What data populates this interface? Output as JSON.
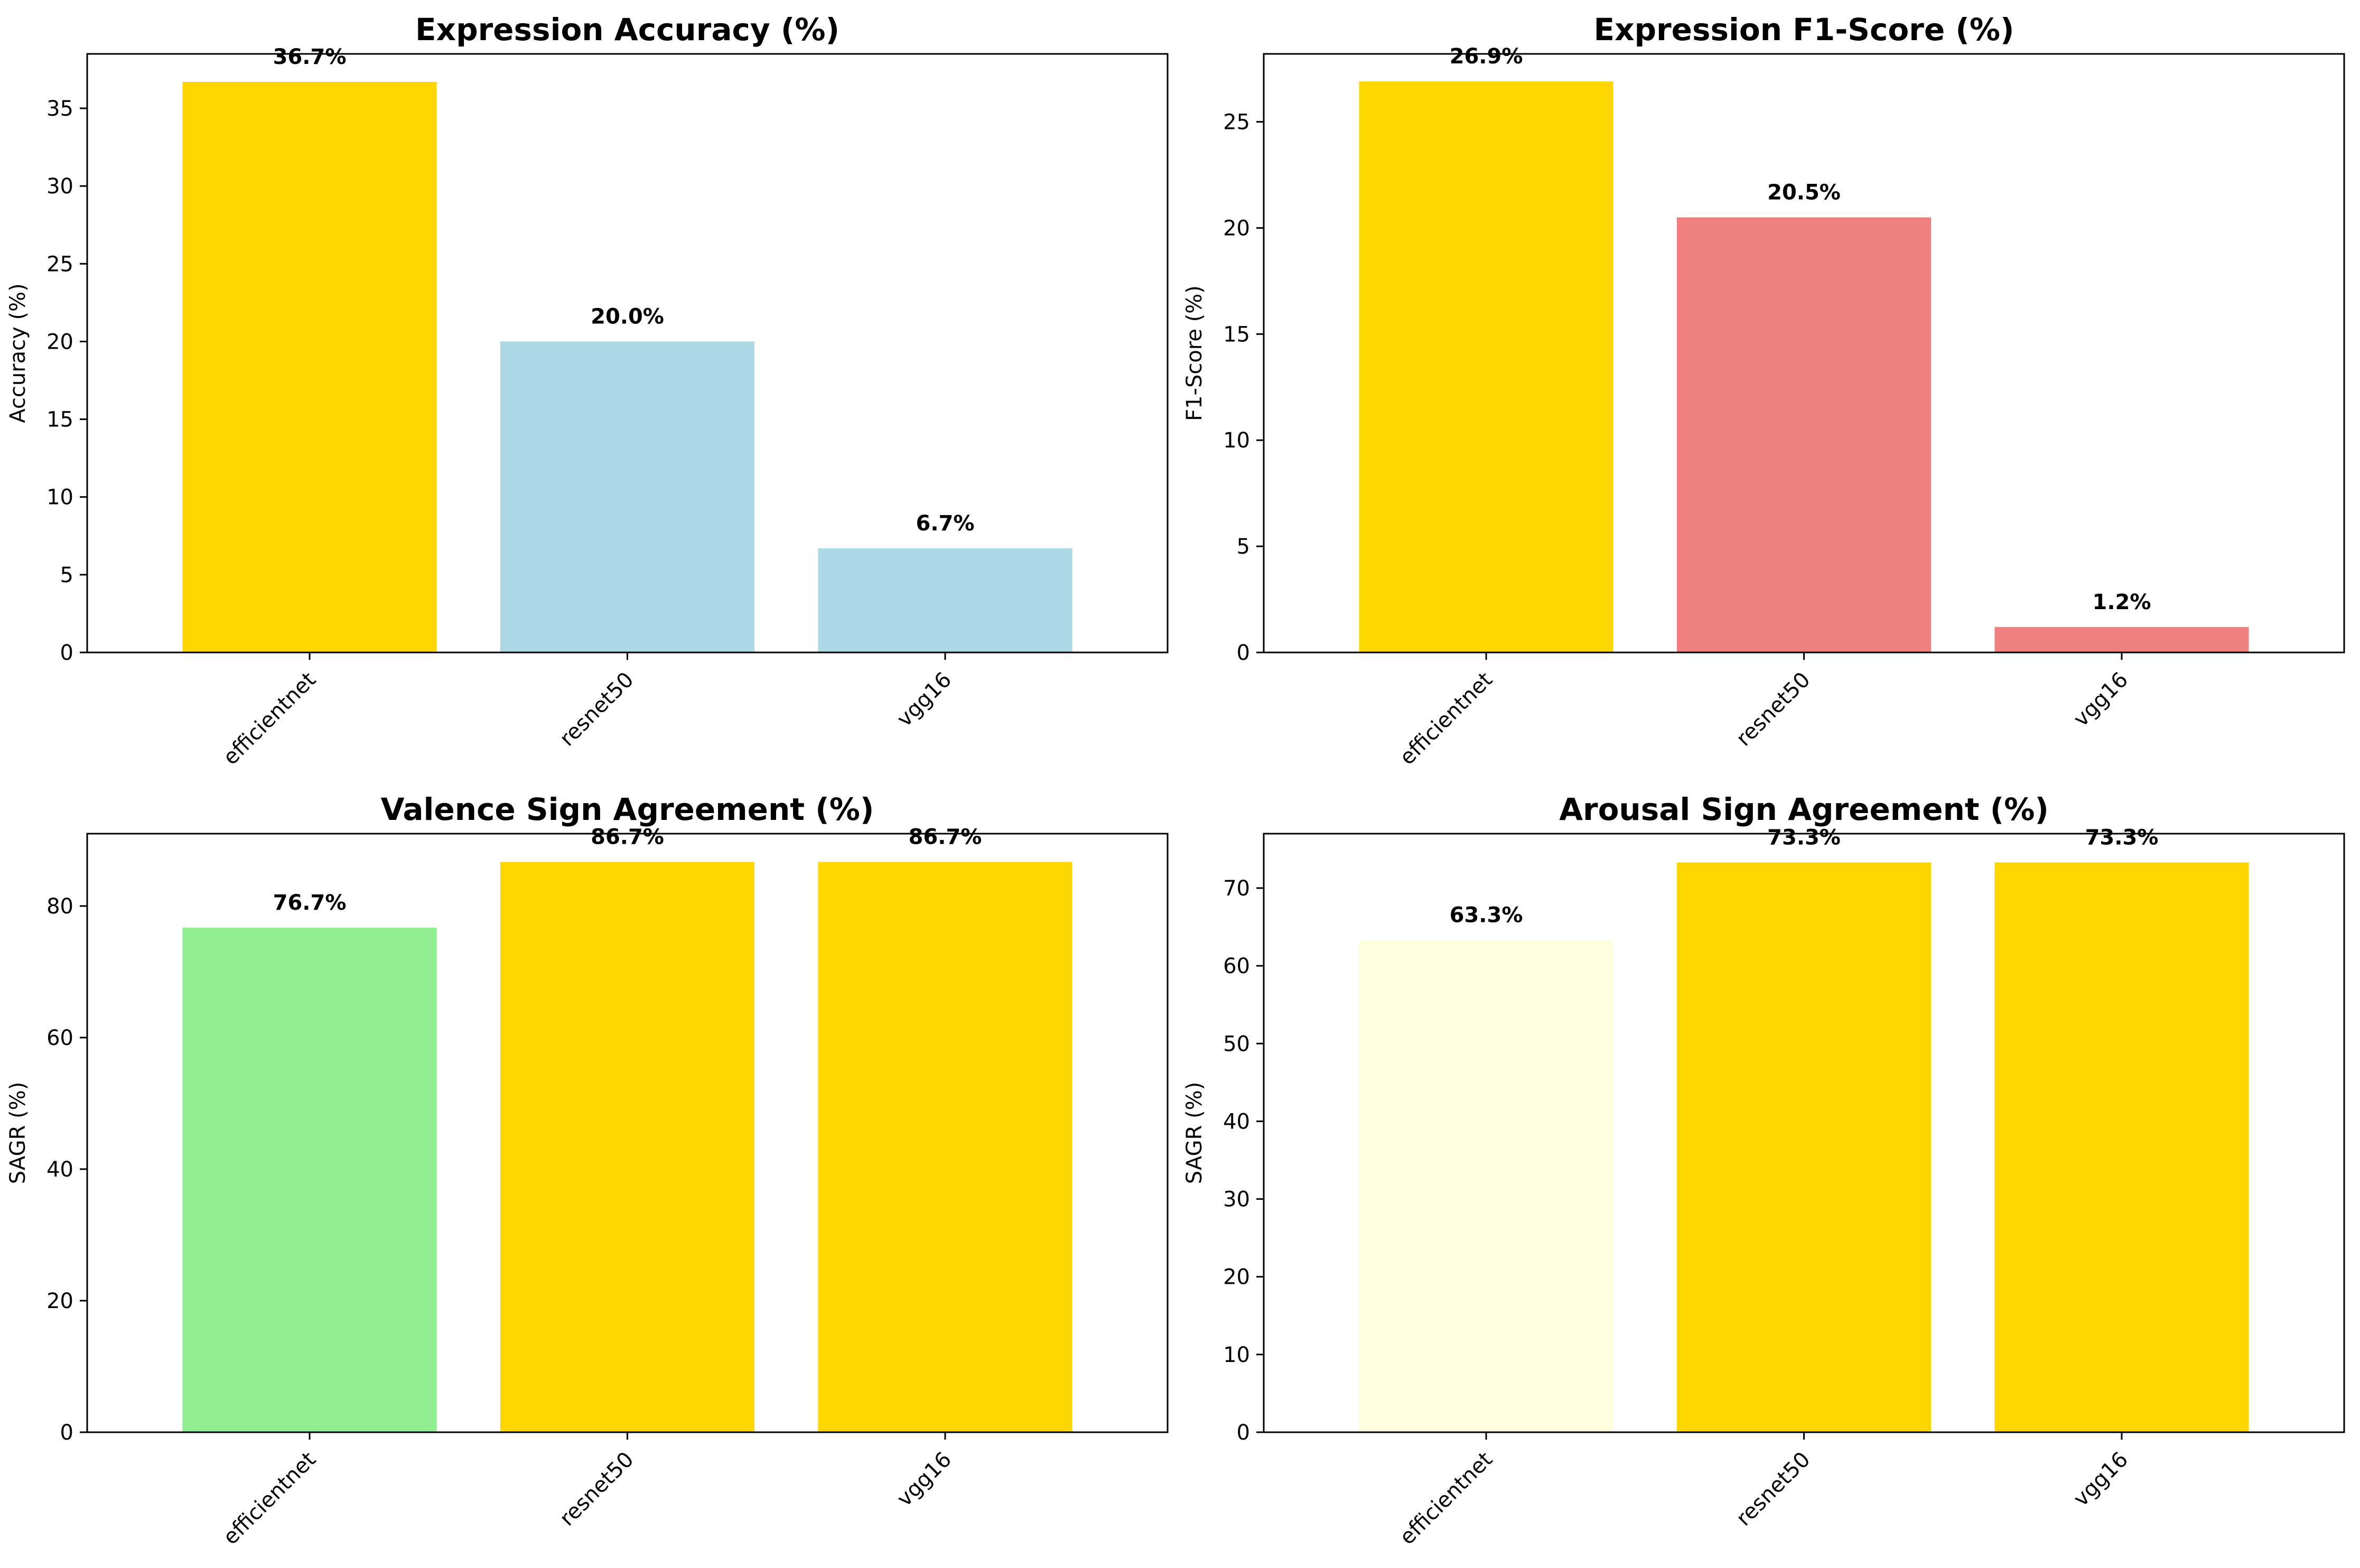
{
  "chart_data": [
    {
      "type": "bar",
      "title": "Expression Accuracy (%)",
      "ylabel": "Accuracy (%)",
      "xlabel": "",
      "categories": [
        "efficientnet",
        "resnet50",
        "vgg16"
      ],
      "values": [
        36.7,
        20.0,
        6.7
      ],
      "value_labels": [
        "36.7%",
        "20.0%",
        "6.7%"
      ],
      "colors": [
        "#FFD700",
        "#ADD8E6",
        "#ADD8E6"
      ],
      "ylim": [
        0,
        38.5
      ],
      "yticks": [
        0,
        5,
        10,
        15,
        20,
        25,
        30,
        35
      ],
      "grid": false,
      "legend": "none"
    },
    {
      "type": "bar",
      "title": "Expression F1-Score (%)",
      "ylabel": "F1-Score (%)",
      "xlabel": "",
      "categories": [
        "efficientnet",
        "resnet50",
        "vgg16"
      ],
      "values": [
        26.9,
        20.5,
        1.2
      ],
      "value_labels": [
        "26.9%",
        "20.5%",
        "1.2%"
      ],
      "colors": [
        "#FFD700",
        "#F08080",
        "#F08080"
      ],
      "ylim": [
        0,
        28.2
      ],
      "yticks": [
        0,
        5,
        10,
        15,
        20,
        25
      ],
      "grid": false,
      "legend": "none"
    },
    {
      "type": "bar",
      "title": "Valence Sign Agreement (%)",
      "ylabel": "SAGR (%)",
      "xlabel": "",
      "categories": [
        "efficientnet",
        "resnet50",
        "vgg16"
      ],
      "values": [
        76.7,
        86.7,
        86.7
      ],
      "value_labels": [
        "76.7%",
        "86.7%",
        "86.7%"
      ],
      "colors": [
        "#90EE90",
        "#FFD700",
        "#FFD700"
      ],
      "ylim": [
        0,
        91
      ],
      "yticks": [
        0,
        20,
        40,
        60,
        80
      ],
      "grid": false,
      "legend": "none"
    },
    {
      "type": "bar",
      "title": "Arousal Sign Agreement (%)",
      "ylabel": "SAGR (%)",
      "xlabel": "",
      "categories": [
        "efficientnet",
        "resnet50",
        "vgg16"
      ],
      "values": [
        63.3,
        73.3,
        73.3
      ],
      "value_labels": [
        "63.3%",
        "73.3%",
        "73.3%"
      ],
      "colors": [
        "#FFFFE0",
        "#FFD700",
        "#FFD700"
      ],
      "ylim": [
        0,
        77
      ],
      "yticks": [
        0,
        10,
        20,
        30,
        40,
        50,
        60,
        70
      ],
      "grid": false,
      "legend": "none"
    }
  ]
}
